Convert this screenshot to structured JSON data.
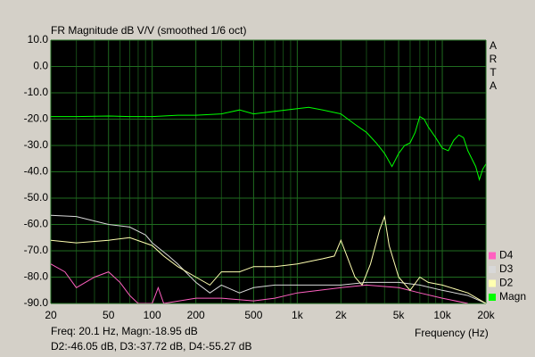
{
  "chart_data": {
    "type": "line",
    "title": "FR Magnitude dB V/V (smoothed 1/6 oct)",
    "side_label": [
      "A",
      "R",
      "T",
      "A"
    ],
    "x_label": "Frequency (Hz)",
    "readout": [
      "Freq: 20.1 Hz, Magn:-18.95 dB",
      "D2:-46.05 dB, D3:-37.72 dB, D4:-55.27 dB"
    ],
    "x_log": true,
    "xlim": [
      20,
      20000
    ],
    "xticks": [
      20,
      50,
      100,
      200,
      500,
      {
        "value": 1000,
        "label": "1k"
      },
      {
        "value": 2000,
        "label": "2k"
      },
      {
        "value": 5000,
        "label": "5k"
      },
      {
        "value": 10000,
        "label": "10k"
      },
      {
        "value": 20000,
        "label": "20k"
      }
    ],
    "x_minor_grid": [
      30,
      40,
      60,
      70,
      80,
      90,
      300,
      400,
      600,
      700,
      800,
      900,
      3000,
      4000,
      6000,
      7000,
      8000,
      9000
    ],
    "ylim": [
      -90,
      10
    ],
    "yticks": [
      {
        "value": 10,
        "label": "10.0"
      },
      {
        "value": 0,
        "label": "0.0"
      },
      {
        "value": -10,
        "label": "-10.0"
      },
      {
        "value": -20,
        "label": "-20.0"
      },
      {
        "value": -30,
        "label": "-30.0"
      },
      {
        "value": -40,
        "label": "-40.0"
      },
      {
        "value": -50,
        "label": "-50.0"
      },
      {
        "value": -60,
        "label": "-60.0"
      },
      {
        "value": -70,
        "label": "-70.0"
      },
      {
        "value": -80,
        "label": "-80.0"
      },
      {
        "value": -90,
        "label": "-90.0"
      }
    ],
    "grid": true,
    "series": [
      {
        "name": "Magn",
        "color": "#00ff00",
        "x": [
          20,
          30,
          50,
          70,
          100,
          150,
          200,
          300,
          400,
          500,
          700,
          1000,
          1200,
          1500,
          2000,
          2500,
          3000,
          3500,
          4000,
          4500,
          5000,
          5500,
          6000,
          6500,
          7000,
          7500,
          8000,
          9000,
          10000,
          11000,
          12000,
          13000,
          14000,
          15000,
          17000,
          18000,
          19000,
          20000
        ],
        "values": [
          -19,
          -19,
          -18.8,
          -19,
          -19,
          -18.5,
          -18.5,
          -18,
          -16.5,
          -18,
          -17,
          -16,
          -15.5,
          -16.5,
          -18,
          -22,
          -25,
          -29,
          -33,
          -38,
          -33,
          -30,
          -29,
          -25,
          -19,
          -20,
          -23,
          -27,
          -31,
          -32,
          -28,
          -26,
          -27,
          -32,
          -38,
          -43,
          -39,
          -37
        ]
      },
      {
        "name": "D2",
        "color": "#ffffb0",
        "x": [
          20,
          30,
          50,
          70,
          100,
          120,
          150,
          200,
          250,
          300,
          400,
          500,
          700,
          1000,
          1500,
          1800,
          2000,
          2200,
          2500,
          2800,
          3200,
          3700,
          4000,
          4300,
          5000,
          6000,
          7000,
          8000,
          10000,
          15000,
          20000
        ],
        "values": [
          -66,
          -67,
          -66,
          -65,
          -68,
          -72,
          -76,
          -80,
          -83,
          -78,
          -78,
          -76,
          -76,
          -75,
          -73,
          -72,
          -66,
          -72,
          -80,
          -83,
          -75,
          -62,
          -57,
          -68,
          -80,
          -85,
          -80,
          -82,
          -83,
          -86,
          -90
        ]
      },
      {
        "name": "D3",
        "color": "#d8d8d8",
        "x": [
          20,
          30,
          50,
          70,
          90,
          100,
          130,
          150,
          200,
          250,
          300,
          400,
          500,
          700,
          1000,
          2000,
          3000,
          5000,
          7000,
          10000,
          15000,
          20000
        ],
        "values": [
          -56.5,
          -57,
          -60,
          -61,
          -64,
          -67,
          -72,
          -75,
          -82,
          -86,
          -83,
          -86,
          -84,
          -83,
          -83,
          -83,
          -82,
          -82,
          -83,
          -85,
          -87,
          -90
        ]
      },
      {
        "name": "D4",
        "color": "#ff60c0",
        "x": [
          20,
          25,
          30,
          40,
          50,
          60,
          70,
          80,
          100,
          110,
          120,
          200,
          300,
          500,
          700,
          1000,
          2000,
          3000,
          5000,
          7000,
          10000,
          15000
        ],
        "values": [
          -75,
          -78,
          -84,
          -80,
          -78,
          -82,
          -87,
          -90,
          -90,
          -84,
          -90,
          -88,
          -88,
          -89,
          -88,
          -86,
          -84,
          -83,
          -84,
          -86,
          -88,
          -90
        ]
      }
    ]
  }
}
